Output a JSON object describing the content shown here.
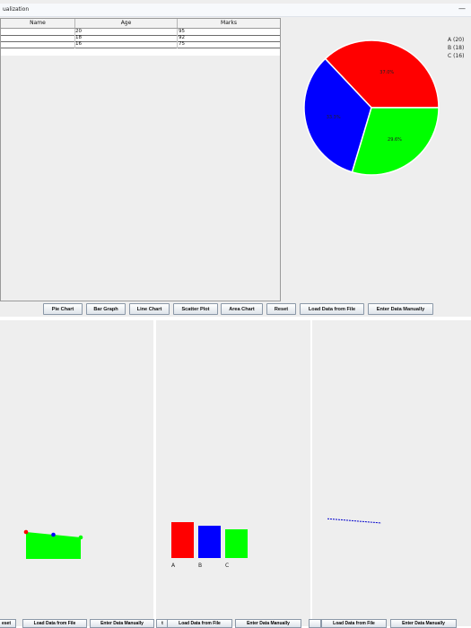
{
  "window": {
    "title": "ualization",
    "minimize_glyph": "—"
  },
  "table": {
    "columns": [
      "Name",
      "Age",
      "Marks"
    ],
    "rows": [
      {
        "name": "",
        "age": "20",
        "marks": "95"
      },
      {
        "name": "",
        "age": "18",
        "marks": "92"
      },
      {
        "name": "",
        "age": "16",
        "marks": "75"
      }
    ]
  },
  "toolbar": {
    "pie": "Pie Chart",
    "bar": "Bar Graph",
    "line": "Line Chart",
    "scatter": "Scatter Plot",
    "area": "Area Chart",
    "reset": "Reset",
    "load": "Load Data from File",
    "enter": "Enter Data Manually"
  },
  "chart_data": [
    {
      "type": "pie",
      "slices": [
        {
          "label": "A (20)",
          "value": 20,
          "percent": "37.0%",
          "color": "#ff0000"
        },
        {
          "label": "B (18)",
          "value": 18,
          "percent": "33.3%",
          "color": "#0000ff"
        },
        {
          "label": "C (16)",
          "value": 16,
          "percent": "29.6%",
          "color": "#00ff00"
        }
      ],
      "legend": "top-right"
    },
    {
      "type": "area",
      "x": [
        0,
        1,
        2
      ],
      "values": [
        20,
        18,
        16
      ],
      "fill_color": "#00ff00",
      "point_colors": [
        "#ff0000",
        "#0000ff",
        "#00ff00"
      ]
    },
    {
      "type": "bar",
      "categories": [
        "A",
        "B",
        "C"
      ],
      "values": [
        20,
        18,
        16
      ],
      "colors": [
        "#ff0000",
        "#0000ff",
        "#00ff00"
      ]
    },
    {
      "type": "line",
      "x": [
        0,
        1,
        2
      ],
      "values": [
        20,
        18,
        16
      ],
      "line_color": "#0000cc"
    }
  ],
  "sub_windows": {
    "left_buttons": [
      "eset",
      "Load Data from File",
      "Enter Data Manually"
    ],
    "middle_buttons": [
      "t",
      "Load Data from File",
      "Enter Data Manually"
    ],
    "right_buttons": [
      "",
      "Load Data from File",
      "Enter Data Manually"
    ]
  }
}
